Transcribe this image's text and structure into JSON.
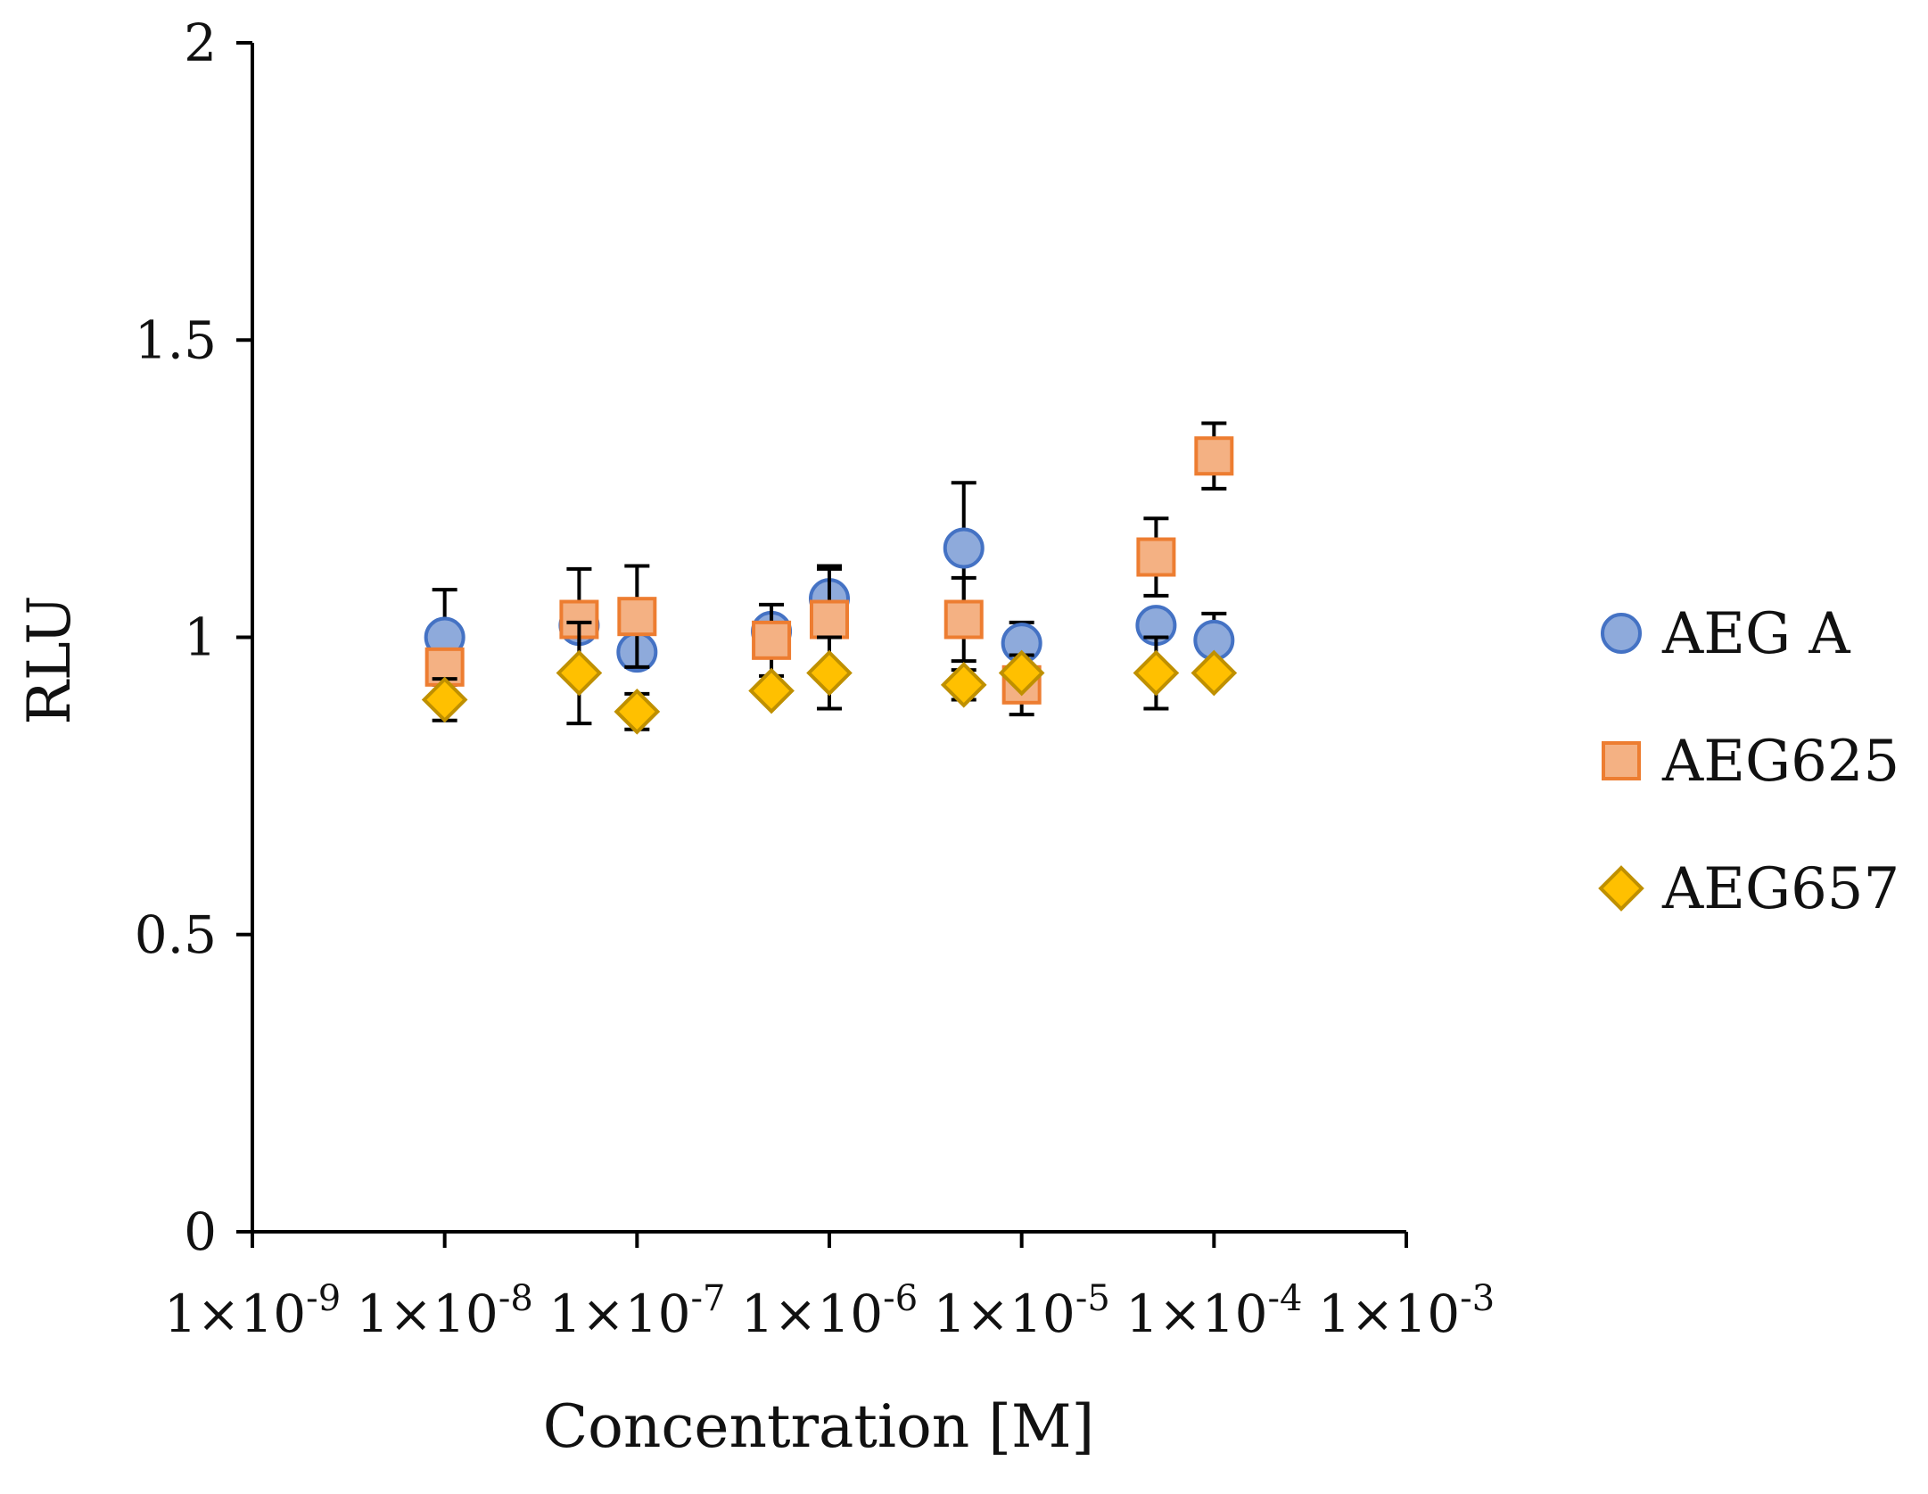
{
  "chart_data": {
    "type": "scatter",
    "title": "",
    "xlabel": "Concentration [M]",
    "ylabel": "RLU",
    "x_scale": "log",
    "xlim": [
      1e-09,
      0.001
    ],
    "ylim": [
      0,
      2
    ],
    "x_ticks": [
      {
        "base": "1×10",
        "exp": "-9"
      },
      {
        "base": "1×10",
        "exp": "-8"
      },
      {
        "base": "1×10",
        "exp": "-7"
      },
      {
        "base": "1×10",
        "exp": "-6"
      },
      {
        "base": "1×10",
        "exp": "-5"
      },
      {
        "base": "1×10",
        "exp": "-4"
      },
      {
        "base": "1×10",
        "exp": "-3"
      }
    ],
    "y_ticks": [
      "0",
      "0.5",
      "1",
      "1.5",
      "2"
    ],
    "grid": false,
    "legend_position": "right",
    "series": [
      {
        "name": "AEG A",
        "marker": "circle",
        "fill": "#8eaadb",
        "stroke": "#4472c4",
        "x": [
          1e-08,
          5e-08,
          1e-07,
          5e-07,
          1e-06,
          5e-06,
          1e-05,
          5e-05,
          0.0001
        ],
        "y": [
          1.0,
          1.02,
          0.975,
          1.01,
          1.065,
          1.15,
          0.99,
          1.02,
          0.995
        ],
        "err": [
          0.08,
          0.0,
          0.0,
          0.0,
          0.05,
          0.11,
          0.035,
          0.0,
          0.045
        ]
      },
      {
        "name": "AEG625",
        "marker": "square",
        "fill": "#f4b183",
        "stroke": "#ed7d31",
        "x": [
          1e-08,
          5e-08,
          1e-07,
          5e-07,
          1e-06,
          5e-06,
          1e-05,
          5e-05,
          0.0001
        ],
        "y": [
          0.95,
          1.03,
          1.035,
          0.995,
          1.03,
          1.03,
          0.92,
          1.135,
          1.305
        ],
        "err": [
          0.0,
          0.085,
          0.085,
          0.06,
          0.09,
          0.07,
          0.05,
          0.065,
          0.055
        ]
      },
      {
        "name": "AEG657",
        "marker": "diamond",
        "fill": "#ffc000",
        "stroke": "#bf9000",
        "x": [
          1e-08,
          5e-08,
          1e-07,
          5e-07,
          1e-06,
          5e-06,
          1e-05,
          5e-05,
          0.0001
        ],
        "y": [
          0.895,
          0.94,
          0.875,
          0.91,
          0.94,
          0.92,
          0.94,
          0.94,
          0.94
        ],
        "err": [
          0.035,
          0.085,
          0.03,
          0.0,
          0.06,
          0.025,
          0.0,
          0.06,
          0.0
        ]
      }
    ]
  }
}
